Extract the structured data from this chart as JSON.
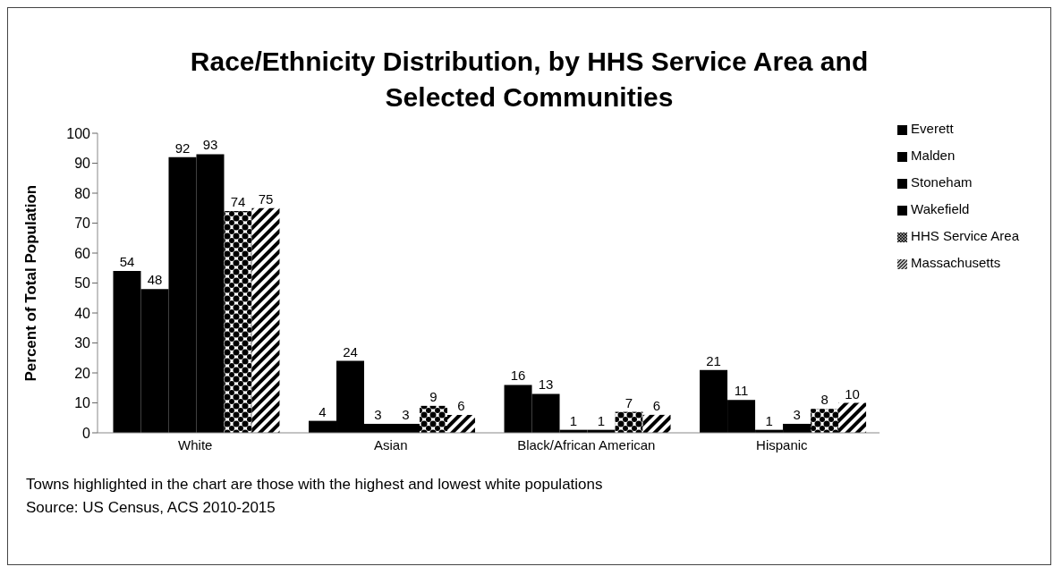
{
  "chart_data": {
    "type": "bar",
    "title": "Race/Ethnicity Distribution, by HHS Service Area and Selected Communities",
    "ylabel": "Percent of Total Population",
    "categories": [
      "White",
      "Asian",
      "Black/African American",
      "Hispanic"
    ],
    "series": [
      {
        "name": "Everett",
        "color": "#000000",
        "values": [
          54,
          4,
          16,
          21
        ]
      },
      {
        "name": "Malden",
        "color": "#000000",
        "values": [
          48,
          24,
          13,
          11
        ]
      },
      {
        "name": "Stoneham",
        "color": "#000000",
        "values": [
          92,
          3,
          1,
          1
        ]
      },
      {
        "name": "Wakefield",
        "color": "#000000",
        "values": [
          93,
          3,
          1,
          3
        ]
      },
      {
        "name": "HHS Service Area",
        "color": "#000000",
        "values": [
          74,
          9,
          7,
          8
        ]
      },
      {
        "name": "Massachusetts",
        "color": "#000000",
        "values": [
          75,
          6,
          6,
          10
        ]
      }
    ],
    "ylim": [
      0,
      100
    ],
    "yticks": [
      0,
      10,
      20,
      30,
      40,
      50,
      60,
      70,
      80,
      90,
      100
    ],
    "grid": false,
    "legend": "right",
    "data_labels": true,
    "annotations": [
      "Towns highlighted in the chart are those with the highest and lowest white populations",
      "Source:  US Census, ACS 2010-2015"
    ]
  }
}
